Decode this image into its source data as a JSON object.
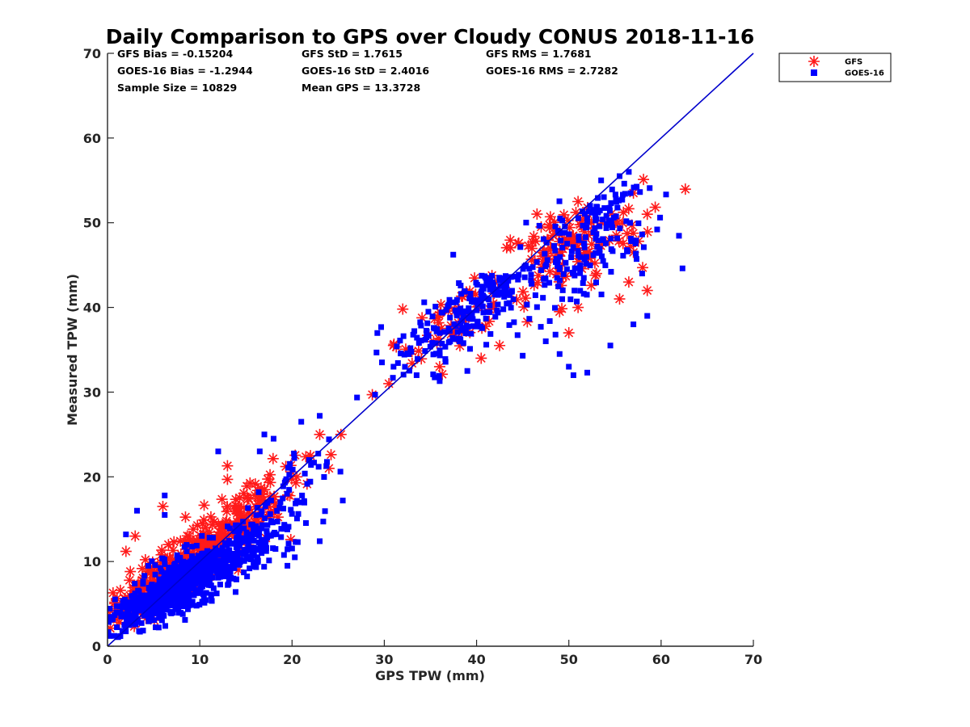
{
  "chart_data": {
    "type": "scatter",
    "title": "Daily Comparison to GPS over Cloudy CONUS 2018-11-16",
    "xlabel": "GPS TPW (mm)",
    "ylabel": "Measured TPW (mm)",
    "xlim": [
      0,
      70
    ],
    "ylim": [
      0,
      70
    ],
    "xticks": [
      "0",
      "10",
      "20",
      "30",
      "40",
      "50",
      "60",
      "70"
    ],
    "yticks": [
      "0",
      "10",
      "20",
      "30",
      "40",
      "50",
      "60",
      "70"
    ],
    "grid": false,
    "legend": {
      "placement": "outside-top-right",
      "entries": [
        "GFS",
        "GOES-16"
      ]
    },
    "stats": [
      [
        "GFS Bias = -0.15204",
        "GFS StD = 1.7615",
        "GFS RMS = 1.7681"
      ],
      [
        "GOES-16 Bias = -1.2944",
        "GOES-16 StD = 2.4016",
        "GOES-16 RMS = 2.7282"
      ],
      [
        "Sample Size = 10829",
        "Mean GPS = 13.3728"
      ]
    ],
    "reference_line": {
      "from": [
        0,
        0
      ],
      "to": [
        70,
        70
      ],
      "color": "#0000cc"
    },
    "series": [
      {
        "name": "GFS",
        "marker": "asterisk",
        "color": "#ff1a1a",
        "clusters": [
          {
            "center": [
              6,
              7.5
            ],
            "spread": [
              3,
              2.5
            ],
            "slope": 1.1,
            "count": 260
          },
          {
            "center": [
              12,
              12.5
            ],
            "spread": [
              3.5,
              2.5
            ],
            "slope": 1.0,
            "count": 160
          },
          {
            "center": [
              17,
              18
            ],
            "spread": [
              3,
              2.5
            ],
            "slope": 1.0,
            "count": 55
          },
          {
            "center": [
              38,
              39
            ],
            "spread": [
              3,
              2.5
            ],
            "slope": 1.0,
            "count": 60
          },
          {
            "center": [
              50,
              47
            ],
            "spread": [
              4,
              4
            ],
            "slope": 0.8,
            "count": 130
          }
        ],
        "points": [
          [
            1,
            3.2
          ],
          [
            2,
            11.2
          ],
          [
            3,
            13
          ],
          [
            6,
            16.5
          ],
          [
            13,
            21.3
          ],
          [
            13,
            19.7
          ],
          [
            23,
            25
          ],
          [
            25.3,
            25
          ],
          [
            24,
            21
          ],
          [
            22,
            22.5
          ],
          [
            28.7,
            29.7
          ],
          [
            30.5,
            31
          ],
          [
            31,
            35.5
          ],
          [
            32,
            39.8
          ],
          [
            33,
            34.8
          ],
          [
            36,
            33
          ],
          [
            40.5,
            34
          ],
          [
            42.5,
            35.5
          ],
          [
            44.5,
            47.5
          ],
          [
            45.5,
            38.3
          ],
          [
            48,
            50.7
          ],
          [
            50,
            37
          ],
          [
            51,
            52.5
          ],
          [
            53,
            44
          ],
          [
            55.5,
            41
          ],
          [
            56.5,
            43
          ],
          [
            57,
            46.5
          ],
          [
            58,
            44.7
          ],
          [
            58.5,
            42
          ],
          [
            58.5,
            51
          ],
          [
            57,
            53.5
          ],
          [
            49,
            39.5
          ],
          [
            51,
            40
          ],
          [
            47,
            49.5
          ]
        ]
      },
      {
        "name": "GOES-16",
        "marker": "square",
        "color": "#0000ff",
        "clusters": [
          {
            "center": [
              5,
              5
            ],
            "spread": [
              2.5,
              2
            ],
            "slope": 0.85,
            "count": 300
          },
          {
            "center": [
              10,
              8.5
            ],
            "spread": [
              3.5,
              2.5
            ],
            "slope": 0.85,
            "count": 450
          },
          {
            "center": [
              15,
              12.5
            ],
            "spread": [
              3,
              2.5
            ],
            "slope": 0.9,
            "count": 120
          },
          {
            "center": [
              20,
              19
            ],
            "spread": [
              2,
              3
            ],
            "slope": 0.9,
            "count": 35
          },
          {
            "center": [
              37,
              37.5
            ],
            "spread": [
              3,
              3.5
            ],
            "slope": 1.0,
            "count": 130
          },
          {
            "center": [
              41.5,
              42
            ],
            "spread": [
              1.8,
              2.2
            ],
            "slope": 1.0,
            "count": 70
          },
          {
            "center": [
              51,
              46
            ],
            "spread": [
              4,
              5
            ],
            "slope": 0.9,
            "count": 150
          },
          {
            "center": [
              53.5,
              51.5
            ],
            "spread": [
              2,
              2
            ],
            "slope": 1.0,
            "count": 50
          }
        ],
        "points": [
          [
            2,
            13.2
          ],
          [
            3.2,
            16
          ],
          [
            6.2,
            17.8
          ],
          [
            6.2,
            15.5
          ],
          [
            12,
            23
          ],
          [
            16.5,
            23
          ],
          [
            17,
            25
          ],
          [
            18,
            24.5
          ],
          [
            21,
            26.5
          ],
          [
            23,
            27.2
          ],
          [
            23,
            12.4
          ],
          [
            25.5,
            17.2
          ],
          [
            20.3,
            10.5
          ],
          [
            19.5,
            9.5
          ],
          [
            29,
            29.7
          ],
          [
            31,
            33
          ],
          [
            33.5,
            32
          ],
          [
            36,
            31.3
          ],
          [
            39,
            32.5
          ],
          [
            45,
            34.3
          ],
          [
            49,
            34.5
          ],
          [
            50,
            33
          ],
          [
            50.5,
            32
          ],
          [
            52,
            32.3
          ],
          [
            54.5,
            35.5
          ],
          [
            58.5,
            39
          ],
          [
            57,
            38
          ],
          [
            56.5,
            56
          ],
          [
            55.5,
            55.5
          ],
          [
            53.5,
            55
          ],
          [
            47.5,
            36
          ]
        ]
      }
    ]
  }
}
